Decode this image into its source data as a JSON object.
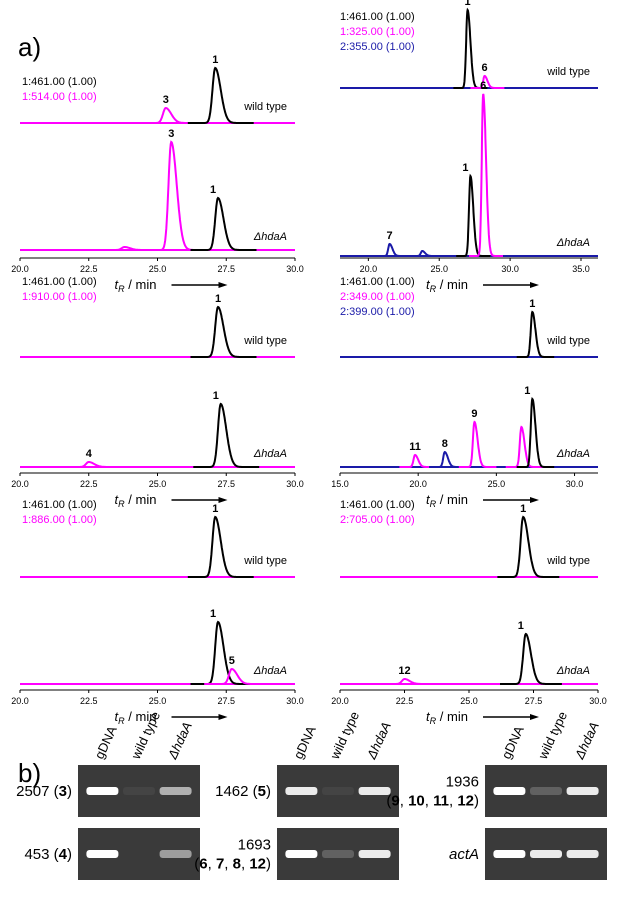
{
  "figure": {
    "panel_a_label": "a)",
    "panel_b_label": "b)",
    "axis_label": {
      "t": "t",
      "sub": "R",
      "rest": " / min"
    },
    "wild_type_label": "wild type",
    "mutant_label": "ΔhdaA",
    "chromatograms": [
      {
        "type": "chromatogram",
        "xlim": [
          20,
          30
        ],
        "xticks": [
          {
            "value": 20,
            "label": "20.0"
          },
          {
            "value": 22.5,
            "label": "22.5"
          },
          {
            "value": 25,
            "label": "25.0"
          },
          {
            "value": 27.5,
            "label": "27.5"
          },
          {
            "value": 30,
            "label": "30.0"
          }
        ],
        "series": [
          {
            "name": "1:461.00 (1.00)",
            "color": "#000000"
          },
          {
            "name": "1:514.00 (1.00)",
            "color": "#ff00ff"
          }
        ],
        "wild_type": [
          {
            "series": 1,
            "x": 25.3,
            "height": 15,
            "label": "3"
          },
          {
            "series": 0,
            "x": 27.1,
            "height": 55,
            "label": "1"
          }
        ],
        "mutant": [
          {
            "series": 1,
            "x": 25.5,
            "height": 108,
            "label": "3"
          },
          {
            "series": 0,
            "x": 27.2,
            "height": 52,
            "label": "1"
          },
          {
            "series": 1,
            "x": 23.8,
            "height": 3
          }
        ]
      },
      {
        "type": "chromatogram",
        "xlim": [
          18,
          36.2
        ],
        "xticks": [
          {
            "value": 20,
            "label": "20.0"
          },
          {
            "value": 25,
            "label": "25.0"
          },
          {
            "value": 30,
            "label": "30.0"
          },
          {
            "value": 35,
            "label": "35.0"
          }
        ],
        "series": [
          {
            "name": "1:461.00 (1.00)",
            "color": "#000000"
          },
          {
            "name": "1:325.00 (1.00)",
            "color": "#ff00ff"
          },
          {
            "name": "2:355.00 (1.00)",
            "color": "#1a1aa8"
          }
        ],
        "wild_type": [
          {
            "series": 0,
            "x": 27.0,
            "height": 78,
            "label": "1"
          },
          {
            "series": 1,
            "x": 28.2,
            "height": 12,
            "label": "6"
          }
        ],
        "mutant": [
          {
            "series": 2,
            "x": 21.5,
            "height": 12,
            "label": "7"
          },
          {
            "series": 0,
            "x": 27.2,
            "height": 80,
            "label": "1"
          },
          {
            "series": 1,
            "x": 28.1,
            "height": 162,
            "label": "6"
          },
          {
            "series": 2,
            "x": 23.8,
            "height": 5
          }
        ]
      },
      {
        "type": "chromatogram",
        "xlim": [
          20,
          30
        ],
        "xticks": [
          {
            "value": 20,
            "label": "20.0"
          },
          {
            "value": 22.5,
            "label": "22.5"
          },
          {
            "value": 25,
            "label": "25.0"
          },
          {
            "value": 27.5,
            "label": "27.5"
          },
          {
            "value": 30,
            "label": "30.0"
          }
        ],
        "series": [
          {
            "name": "1:461.00 (1.00)",
            "color": "#000000"
          },
          {
            "name": "1:910.00 (1.00)",
            "color": "#ff00ff"
          }
        ],
        "wild_type": [
          {
            "series": 0,
            "x": 27.2,
            "height": 50,
            "label": "1"
          }
        ],
        "mutant": [
          {
            "series": 1,
            "x": 22.5,
            "height": 5,
            "label": "4"
          },
          {
            "series": 0,
            "x": 27.3,
            "height": 63,
            "label": "1"
          }
        ]
      },
      {
        "type": "chromatogram",
        "xlim": [
          15,
          31.5
        ],
        "xticks": [
          {
            "value": 15,
            "label": "15.0"
          },
          {
            "value": 20,
            "label": "20.0"
          },
          {
            "value": 25,
            "label": "25.0"
          },
          {
            "value": 30,
            "label": "30.0"
          }
        ],
        "series": [
          {
            "name": "1:461.00 (1.00)",
            "color": "#000000"
          },
          {
            "name": "2:349.00 (1.00)",
            "color": "#ff00ff"
          },
          {
            "name": "2:399.00 (1.00)",
            "color": "#1a1aa8"
          }
        ],
        "wild_type": [
          {
            "series": 0,
            "x": 27.3,
            "height": 45,
            "label": "1"
          }
        ],
        "mutant": [
          {
            "series": 1,
            "x": 19.8,
            "height": 12,
            "label": "11"
          },
          {
            "series": 2,
            "x": 21.7,
            "height": 15,
            "label": "8"
          },
          {
            "series": 1,
            "x": 23.6,
            "height": 45,
            "label": "9"
          },
          {
            "series": 1,
            "x": 26.6,
            "height": 40
          },
          {
            "series": 0,
            "x": 27.3,
            "height": 68,
            "label": "1"
          }
        ]
      },
      {
        "type": "chromatogram",
        "xlim": [
          20,
          30
        ],
        "xticks": [
          {
            "value": 20,
            "label": "20.0"
          },
          {
            "value": 22.5,
            "label": "22.5"
          },
          {
            "value": 25,
            "label": "25.0"
          },
          {
            "value": 27.5,
            "label": "27.5"
          },
          {
            "value": 30,
            "label": "30.0"
          }
        ],
        "series": [
          {
            "name": "1:461.00 (1.00)",
            "color": "#000000"
          },
          {
            "name": "1:886.00 (1.00)",
            "color": "#ff00ff"
          }
        ],
        "wild_type": [
          {
            "series": 0,
            "x": 27.1,
            "height": 60,
            "label": "1"
          }
        ],
        "mutant": [
          {
            "series": 0,
            "x": 27.2,
            "height": 62,
            "label": "1"
          },
          {
            "series": 1,
            "x": 27.7,
            "height": 15,
            "label": "5"
          }
        ]
      },
      {
        "type": "chromatogram",
        "xlim": [
          20,
          30
        ],
        "xticks": [
          {
            "value": 20,
            "label": "20.0"
          },
          {
            "value": 22.5,
            "label": "22.5"
          },
          {
            "value": 25,
            "label": "25.0"
          },
          {
            "value": 27.5,
            "label": "27.5"
          },
          {
            "value": 30,
            "label": "30.0"
          }
        ],
        "series": [
          {
            "name": "1:461.00 (1.00)",
            "color": "#000000"
          },
          {
            "name": "2:705.00 (1.00)",
            "color": "#ff00ff"
          }
        ],
        "wild_type": [
          {
            "series": 0,
            "x": 27.1,
            "height": 60,
            "label": "1"
          }
        ],
        "mutant": [
          {
            "series": 1,
            "x": 22.5,
            "height": 5,
            "label": "12"
          },
          {
            "series": 0,
            "x": 27.2,
            "height": 50,
            "label": "1"
          }
        ]
      }
    ],
    "gel_lanes": [
      "gDNA",
      "wild type",
      "ΔhdaA"
    ],
    "gels": [
      {
        "rows": [
          {
            "label": [
              [
                {
                  "t": "2507 ("
                },
                {
                  "t": "3",
                  "bold": true
                },
                {
                  "t": ")"
                }
              ]
            ],
            "bands": [
              1,
              0.05,
              0.6
            ]
          },
          {
            "label": [
              [
                {
                  "t": "453 ("
                },
                {
                  "t": "4",
                  "bold": true
                },
                {
                  "t": ")"
                }
              ]
            ],
            "bands": [
              1,
              0,
              0.5
            ]
          }
        ]
      },
      {
        "rows": [
          {
            "label": [
              [
                {
                  "t": "1462 ("
                },
                {
                  "t": "5",
                  "bold": true
                },
                {
                  "t": ")"
                }
              ]
            ],
            "bands": [
              0.9,
              0.05,
              0.9
            ]
          },
          {
            "label": [
              [
                {
                  "t": "1693"
                }
              ],
              [
                {
                  "t": "("
                },
                {
                  "t": "6",
                  "bold": true
                },
                {
                  "t": ", "
                },
                {
                  "t": "7",
                  "bold": true
                },
                {
                  "t": ", "
                },
                {
                  "t": "8",
                  "bold": true
                },
                {
                  "t": ", "
                },
                {
                  "t": "12",
                  "bold": true
                },
                {
                  "t": ")"
                }
              ]
            ],
            "bands": [
              1,
              0.2,
              0.9
            ]
          }
        ]
      },
      {
        "rows": [
          {
            "label": [
              [
                {
                  "t": "1936"
                }
              ],
              [
                {
                  "t": "("
                },
                {
                  "t": "9",
                  "bold": true
                },
                {
                  "t": ", "
                },
                {
                  "t": "10",
                  "bold": true
                },
                {
                  "t": ", "
                },
                {
                  "t": "11",
                  "bold": true
                },
                {
                  "t": ", "
                },
                {
                  "t": "12",
                  "bold": true
                },
                {
                  "t": ")"
                }
              ]
            ],
            "bands": [
              1,
              0.2,
              0.9
            ]
          },
          {
            "label": [
              [
                {
                  "t": "actA",
                  "italic": true
                }
              ]
            ],
            "bands": [
              1,
              0.9,
              0.9
            ]
          }
        ]
      }
    ]
  }
}
